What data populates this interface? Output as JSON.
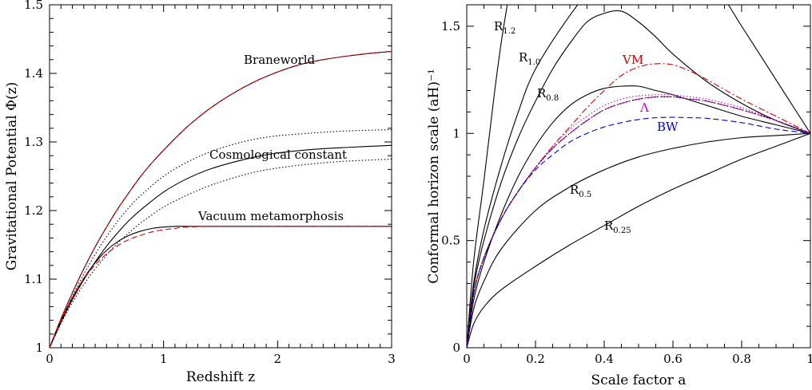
{
  "chart_data": [
    {
      "type": "line",
      "xlabel": "Redshift z",
      "ylabel": "Gravitational Potential Φ(z)",
      "xlim": [
        0,
        3
      ],
      "ylim": [
        1,
        1.5
      ],
      "x_ticks": [
        "0",
        "1",
        "2",
        "3"
      ],
      "y_ticks": [
        "1",
        "1.1",
        "1.2",
        "1.3",
        "1.4",
        "1.5"
      ],
      "grid": false,
      "annotations": [
        "Braneworld",
        "Cosmological constant",
        "Vacuum metamorphosis"
      ],
      "series": [
        {
          "x": [
            0,
            0.1,
            0.2,
            0.3,
            0.4,
            0.5,
            0.6,
            0.7,
            0.8,
            0.9,
            1.0,
            1.2,
            1.4,
            1.6,
            1.8,
            2.0,
            2.2,
            2.4,
            2.6,
            2.8,
            3.0
          ],
          "y": [
            1.0,
            1.042,
            1.08,
            1.115,
            1.147,
            1.176,
            1.203,
            1.227,
            1.25,
            1.27,
            1.288,
            1.321,
            1.348,
            1.37,
            1.388,
            1.402,
            1.413,
            1.42,
            1.425,
            1.429,
            1.432
          ],
          "color": "#000000",
          "dash": "solid"
        },
        {
          "x": [
            0,
            0.1,
            0.2,
            0.3,
            0.4,
            0.5,
            0.6,
            0.7,
            0.8,
            0.9,
            1.0,
            1.2,
            1.4,
            1.6,
            1.8,
            2.0,
            2.2,
            2.4,
            2.6,
            2.8,
            3.0
          ],
          "y": [
            1.0,
            1.042,
            1.08,
            1.115,
            1.147,
            1.176,
            1.203,
            1.227,
            1.25,
            1.27,
            1.288,
            1.321,
            1.348,
            1.37,
            1.388,
            1.402,
            1.413,
            1.42,
            1.425,
            1.429,
            1.432
          ],
          "color": "#dd0000",
          "dash": "dashed"
        },
        {
          "x": [
            0,
            0.1,
            0.2,
            0.3,
            0.4,
            0.5,
            0.6,
            0.7,
            0.8,
            1.0,
            1.2,
            1.4,
            1.6,
            1.8,
            2.0,
            2.3,
            2.6,
            3.0
          ],
          "y": [
            1.0,
            1.037,
            1.07,
            1.099,
            1.125,
            1.148,
            1.168,
            1.186,
            1.201,
            1.227,
            1.246,
            1.26,
            1.27,
            1.278,
            1.284,
            1.289,
            1.292,
            1.295
          ],
          "color": "#000000",
          "dash": "solid"
        },
        {
          "x": [
            0,
            0.1,
            0.2,
            0.3,
            0.4,
            0.5,
            0.6,
            0.7,
            0.8,
            1.0,
            1.2,
            1.4,
            1.6,
            1.8,
            2.0,
            2.3,
            2.6,
            3.0
          ],
          "y": [
            1.0,
            1.039,
            1.075,
            1.107,
            1.136,
            1.162,
            1.185,
            1.205,
            1.222,
            1.25,
            1.27,
            1.285,
            1.296,
            1.304,
            1.309,
            1.313,
            1.316,
            1.318
          ],
          "color": "#000000",
          "dash": "dotted"
        },
        {
          "x": [
            0,
            0.1,
            0.2,
            0.3,
            0.4,
            0.5,
            0.6,
            0.7,
            0.8,
            1.0,
            1.2,
            1.4,
            1.6,
            1.8,
            2.0,
            2.3,
            2.6,
            3.0
          ],
          "y": [
            1.0,
            1.035,
            1.066,
            1.092,
            1.115,
            1.135,
            1.153,
            1.168,
            1.182,
            1.205,
            1.222,
            1.236,
            1.247,
            1.256,
            1.262,
            1.268,
            1.272,
            1.275
          ],
          "color": "#000000",
          "dash": "dotted"
        },
        {
          "x": [
            0,
            0.1,
            0.2,
            0.3,
            0.4,
            0.5,
            0.6,
            0.7,
            0.8,
            0.9,
            1.0,
            1.1,
            1.2,
            1.5,
            2.0,
            2.5,
            3.0
          ],
          "y": [
            1.0,
            1.039,
            1.073,
            1.101,
            1.124,
            1.142,
            1.155,
            1.164,
            1.17,
            1.174,
            1.176,
            1.177,
            1.177,
            1.177,
            1.177,
            1.177,
            1.177
          ],
          "color": "#000000",
          "dash": "solid"
        },
        {
          "x": [
            0,
            0.1,
            0.2,
            0.3,
            0.4,
            0.5,
            0.6,
            0.7,
            0.8,
            0.9,
            1.0,
            1.1,
            1.2,
            1.5,
            2.0,
            2.5,
            3.0
          ],
          "y": [
            1.0,
            1.039,
            1.073,
            1.1,
            1.121,
            1.137,
            1.149,
            1.158,
            1.164,
            1.169,
            1.172,
            1.174,
            1.176,
            1.177,
            1.177,
            1.177,
            1.177
          ],
          "color": "#dd0000",
          "dash": "dashed"
        }
      ]
    },
    {
      "type": "line",
      "xlabel": "Scale factor a",
      "ylabel": "Conformal horizon scale (aH)⁻¹",
      "xlim": [
        0,
        1
      ],
      "ylim": [
        0,
        1.6
      ],
      "x_ticks": [
        "0",
        "0.2",
        "0.4",
        "0.6",
        "0.8",
        "1"
      ],
      "y_ticks": [
        "0",
        "0.5",
        "1",
        "1.5"
      ],
      "grid": false,
      "annotations": [
        "VM",
        "Λ",
        "BW"
      ],
      "r_labels": [
        {
          "base": "R",
          "sub": "1.2"
        },
        {
          "base": "R",
          "sub": "1.0"
        },
        {
          "base": "R",
          "sub": "0.8"
        },
        {
          "base": "R",
          "sub": "0.5"
        },
        {
          "base": "R",
          "sub": "0.25"
        }
      ],
      "series": [
        {
          "x": [
            0,
            0.02,
            0.05,
            0.08,
            0.1,
            0.12
          ],
          "y": [
            0,
            0.4,
            0.78,
            1.18,
            1.42,
            1.62
          ],
          "color": "#000000",
          "dash": "solid"
        },
        {
          "x": [
            0,
            0.02,
            0.05,
            0.1,
            0.15,
            0.2,
            0.3,
            0.4,
            0.5,
            0.6,
            0.7,
            0.8,
            0.9,
            1.0
          ],
          "y": [
            0,
            0.3,
            0.55,
            0.85,
            1.1,
            1.3,
            1.55,
            1.75,
            1.88,
            1.91,
            1.75,
            1.5,
            1.25,
            1.0
          ],
          "color": "#000000",
          "dash": "solid"
        },
        {
          "x": [
            0,
            0.02,
            0.05,
            0.1,
            0.15,
            0.2,
            0.25,
            0.3,
            0.35,
            0.4,
            0.45,
            0.5,
            0.55,
            0.6,
            0.7,
            0.8,
            0.9,
            1.0
          ],
          "y": [
            0,
            0.28,
            0.5,
            0.77,
            0.98,
            1.15,
            1.3,
            1.42,
            1.52,
            1.56,
            1.57,
            1.52,
            1.45,
            1.37,
            1.24,
            1.14,
            1.06,
            1.0
          ],
          "color": "#000000",
          "dash": "solid"
        },
        {
          "x": [
            0,
            0.02,
            0.05,
            0.1,
            0.15,
            0.2,
            0.25,
            0.3,
            0.35,
            0.4,
            0.45,
            0.5,
            0.55,
            0.6,
            0.7,
            0.8,
            0.9,
            1.0
          ],
          "y": [
            0,
            0.22,
            0.4,
            0.62,
            0.8,
            0.94,
            1.05,
            1.13,
            1.18,
            1.21,
            1.22,
            1.22,
            1.2,
            1.18,
            1.13,
            1.08,
            1.04,
            1.0
          ],
          "color": "#000000",
          "dash": "solid"
        },
        {
          "x": [
            0,
            0.02,
            0.05,
            0.1,
            0.2,
            0.3,
            0.4,
            0.5,
            0.6,
            0.7,
            0.8,
            0.9,
            1.0
          ],
          "y": [
            0,
            0.18,
            0.31,
            0.46,
            0.64,
            0.75,
            0.83,
            0.89,
            0.93,
            0.96,
            0.98,
            0.99,
            1.0
          ],
          "color": "#000000",
          "dash": "solid"
        },
        {
          "x": [
            0,
            0.02,
            0.05,
            0.1,
            0.2,
            0.3,
            0.4,
            0.5,
            0.6,
            0.7,
            0.8,
            0.9,
            1.0
          ],
          "y": [
            0,
            0.11,
            0.19,
            0.27,
            0.38,
            0.48,
            0.57,
            0.66,
            0.74,
            0.81,
            0.88,
            0.94,
            1.0
          ],
          "color": "#000000",
          "dash": "solid"
        },
        {
          "x": [
            0,
            0.02,
            0.05,
            0.1,
            0.15,
            0.2,
            0.25,
            0.3,
            0.35,
            0.4,
            0.45,
            0.5,
            0.55,
            0.6,
            0.65,
            0.7,
            0.8,
            0.9,
            1.0
          ],
          "y": [
            0,
            0.25,
            0.42,
            0.6,
            0.73,
            0.84,
            0.94,
            1.03,
            1.12,
            1.2,
            1.27,
            1.31,
            1.325,
            1.32,
            1.29,
            1.25,
            1.16,
            1.08,
            1.0
          ],
          "color": "#dd0000",
          "dash": "dashdot"
        },
        {
          "x": [
            0,
            0.02,
            0.05,
            0.1,
            0.15,
            0.2,
            0.25,
            0.3,
            0.35,
            0.4,
            0.45,
            0.5,
            0.55,
            0.6,
            0.65,
            0.7,
            0.8,
            0.9,
            1.0
          ],
          "y": [
            0,
            0.25,
            0.42,
            0.6,
            0.73,
            0.84,
            0.93,
            1.0,
            1.06,
            1.11,
            1.14,
            1.16,
            1.17,
            1.17,
            1.16,
            1.15,
            1.11,
            1.06,
            1.0
          ],
          "color": "#cc00cc",
          "dash": "longdash"
        },
        {
          "x": [
            0,
            0.02,
            0.05,
            0.1,
            0.15,
            0.2,
            0.25,
            0.3,
            0.35,
            0.4,
            0.45,
            0.5,
            0.55,
            0.6,
            0.65,
            0.7,
            0.8,
            0.9,
            1.0
          ],
          "y": [
            0,
            0.25,
            0.42,
            0.6,
            0.73,
            0.84,
            0.94,
            1.02,
            1.08,
            1.13,
            1.16,
            1.175,
            1.18,
            1.18,
            1.17,
            1.16,
            1.12,
            1.06,
            1.0
          ],
          "color": "#cc00cc",
          "dash": "dotted"
        },
        {
          "x": [
            0,
            0.02,
            0.05,
            0.1,
            0.15,
            0.2,
            0.25,
            0.3,
            0.35,
            0.4,
            0.45,
            0.5,
            0.55,
            0.6,
            0.65,
            0.7,
            0.8,
            0.9,
            1.0
          ],
          "y": [
            0,
            0.25,
            0.42,
            0.6,
            0.73,
            0.83,
            0.9,
            0.96,
            1.0,
            1.03,
            1.05,
            1.065,
            1.073,
            1.075,
            1.073,
            1.07,
            1.05,
            1.02,
            1.0
          ],
          "color": "#0000dd",
          "dash": "dashed"
        },
        {
          "x": [
            0,
            0.02,
            0.05,
            0.1,
            0.15,
            0.2,
            0.25,
            0.3,
            0.35,
            0.4,
            0.45,
            0.5,
            0.55,
            0.6,
            0.65,
            0.7,
            0.8,
            0.9,
            1.0
          ],
          "y": [
            0,
            0.25,
            0.42,
            0.6,
            0.73,
            0.84,
            0.93,
            1.0,
            1.06,
            1.11,
            1.14,
            1.16,
            1.17,
            1.17,
            1.16,
            1.15,
            1.11,
            1.06,
            1.0
          ],
          "color": "#000000",
          "dash": "dotted"
        }
      ]
    }
  ],
  "colors": {
    "black": "#000000",
    "red": "#dd0000",
    "magenta": "#cc00cc",
    "blue": "#0000dd"
  }
}
